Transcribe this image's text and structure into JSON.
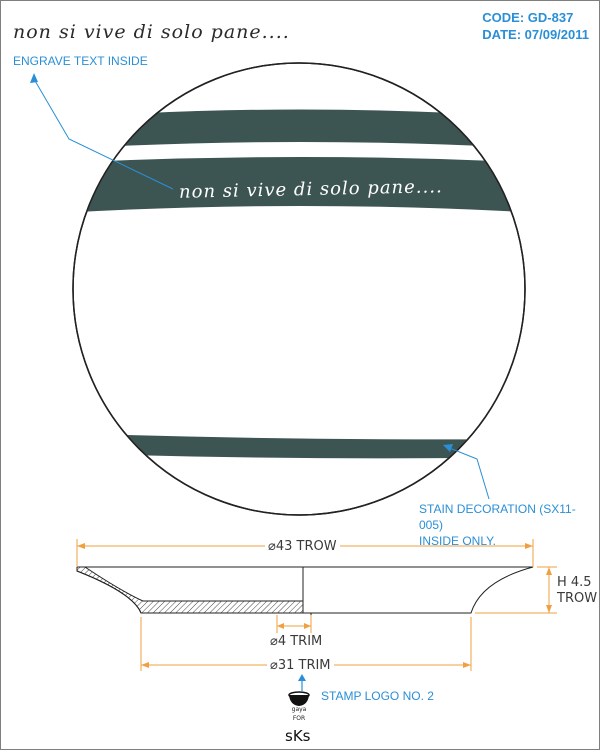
{
  "header": {
    "script_title": "non si vive di solo pane....",
    "code": "CODE: GD-837",
    "date": "DATE: 07/09/2011"
  },
  "plate": {
    "engraved_text": "non si vive di solo pane....",
    "band_color": "#3d5552"
  },
  "callouts": {
    "engrave_note": "ENGRAVE TEXT INSIDE",
    "stain_note_line1": "STAIN DECORATION (SX11-005)",
    "stain_note_line2": "INSIDE ONLY.",
    "stamp_note": "STAMP LOGO NO. 2"
  },
  "dimensions": {
    "outer_diameter": "⌀43 TROW",
    "height_line1": "H 4.5",
    "height_line2": "TROW",
    "foot_trim": "⌀4 TRIM",
    "base_diameter": "⌀31 TRIM"
  },
  "logo": {
    "line1": "gaya",
    "line2": "FOR",
    "brand": "sKs"
  },
  "colors": {
    "accent_blue": "#2a8fd6",
    "dimension_orange": "#f0a040",
    "outline": "#222222"
  }
}
